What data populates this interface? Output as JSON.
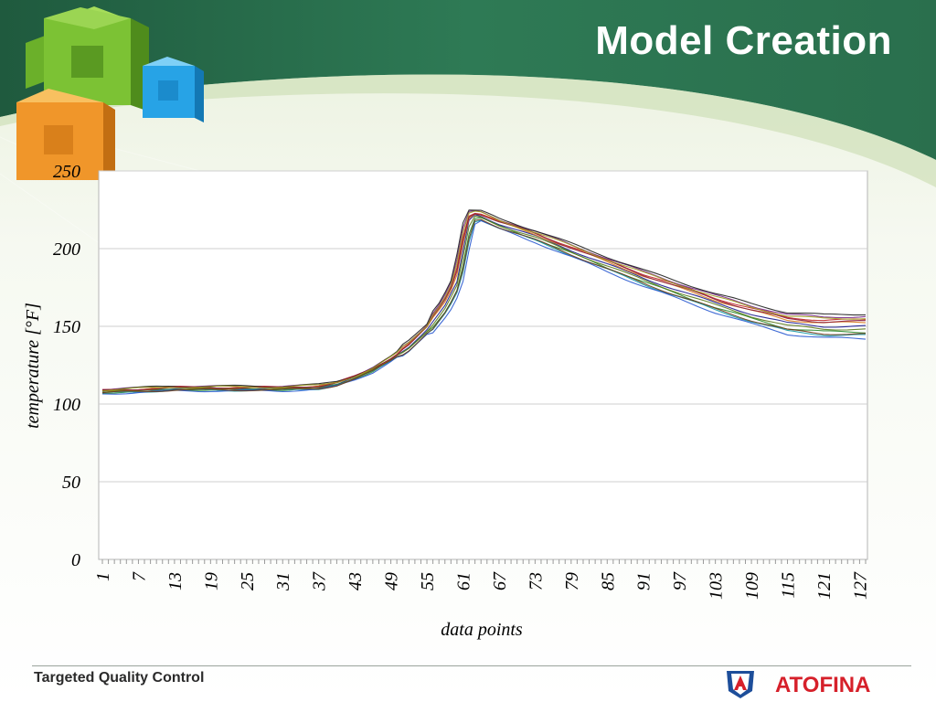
{
  "slide": {
    "title": "Model Creation",
    "footer": "Targeted Quality Control",
    "brand": "ATOFINA"
  },
  "colors": {
    "header_green": "#2e7a55",
    "header_dark": "#1f5a3e",
    "cube_green": "#7cc234",
    "cube_blue": "#27a3e6",
    "cube_orange": "#f0962a",
    "brand_red": "#d6202a",
    "brand_blue": "#1d4e9a"
  },
  "chart_data": {
    "type": "line",
    "title": "",
    "xlabel": "data points",
    "ylabel": "temperature [°F]",
    "ylim": [
      0,
      250
    ],
    "yticks": [
      0,
      50,
      100,
      150,
      200,
      250
    ],
    "xlim": [
      1,
      128
    ],
    "xticks": [
      1,
      7,
      13,
      19,
      25,
      31,
      37,
      43,
      49,
      55,
      61,
      67,
      73,
      79,
      85,
      91,
      97,
      103,
      109,
      115,
      121,
      127
    ],
    "grid": "horizontal",
    "legend": "none",
    "series_count_note": "many overlapping traces",
    "profile": {
      "x": [
        1,
        7,
        13,
        19,
        25,
        31,
        37,
        40,
        43,
        46,
        49,
        52,
        55,
        58,
        60,
        61,
        62,
        63,
        64,
        67,
        73,
        79,
        85,
        91,
        97,
        103,
        109,
        115,
        121,
        127
      ],
      "y": [
        108,
        109,
        110,
        110,
        110,
        110,
        111,
        113,
        117,
        122,
        129,
        137,
        148,
        163,
        178,
        198,
        218,
        222,
        221,
        216,
        208,
        199,
        190,
        181,
        173,
        165,
        158,
        152,
        150,
        150
      ]
    },
    "series": [
      {
        "color": "#1b1b8f",
        "offset": 0.0
      },
      {
        "color": "#c02424",
        "offset": 1.6
      },
      {
        "color": "#2c8a2c",
        "offset": -1.4
      },
      {
        "color": "#7a2a8c",
        "offset": 2.4
      },
      {
        "color": "#1a9aa8",
        "offset": -2.2
      },
      {
        "color": "#d97a1a",
        "offset": 0.9
      },
      {
        "color": "#202020",
        "offset": 3.0
      },
      {
        "color": "#5a7a1a",
        "offset": -0.7
      },
      {
        "color": "#8a1a3a",
        "offset": 1.2
      },
      {
        "color": "#2a5ad0",
        "offset": -3.0
      },
      {
        "color": "#a0a020",
        "offset": 2.0
      },
      {
        "color": "#6b3a1a",
        "offset": -1.9
      }
    ]
  }
}
